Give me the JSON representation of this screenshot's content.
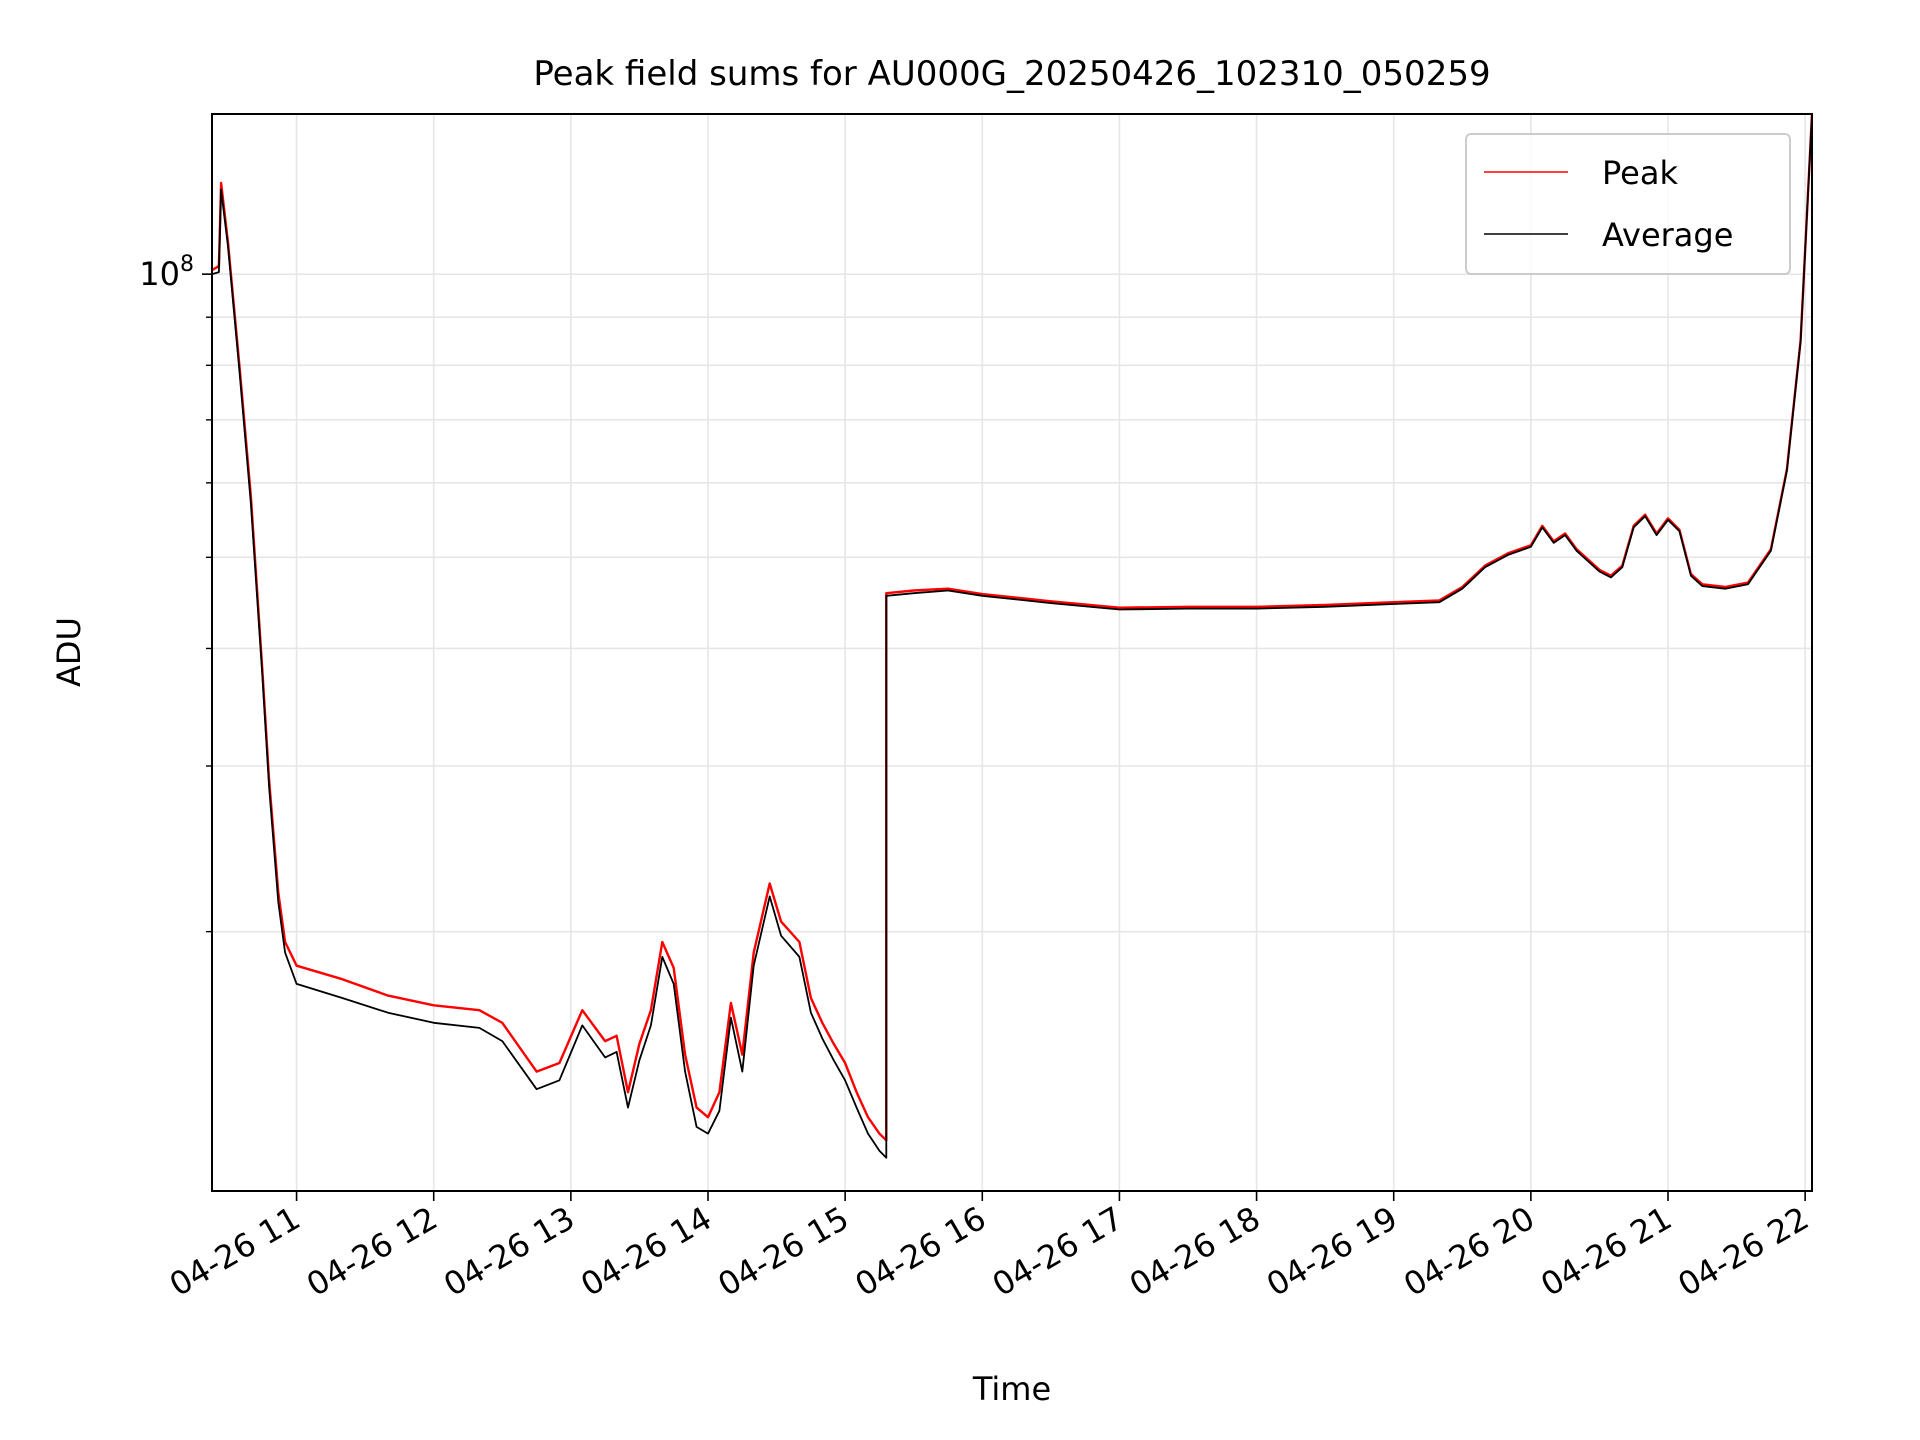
{
  "chart_data": {
    "type": "line",
    "title": "Peak field sums for AU000G_20250426_102310_050259",
    "xlabel": "Time",
    "ylabel": "ADU",
    "y_scale": "log",
    "grid": true,
    "legend_position": "top-right",
    "x_range": [
      "04-26 10:23",
      "04-26 22:03"
    ],
    "y_range": [
      10600000,
      148000000
    ],
    "x_ticks": [
      "04-26 11",
      "04-26 12",
      "04-26 13",
      "04-26 14",
      "04-26 15",
      "04-26 16",
      "04-26 17",
      "04-26 18",
      "04-26 19",
      "04-26 20",
      "04-26 21",
      "04-26 22"
    ],
    "y_tick_labels": [
      {
        "value": 100000000,
        "base": "10",
        "exponent": "8"
      }
    ],
    "y_minor_ticks": [
      20000000,
      30000000,
      40000000,
      50000000,
      60000000,
      70000000,
      80000000,
      90000000
    ],
    "series": [
      {
        "name": "Peak",
        "color": "#ff0000",
        "points": [
          [
            "04-26 10:23",
            101000000
          ],
          [
            "04-26 10:26",
            102000000
          ],
          [
            "04-26 10:27",
            125000000
          ],
          [
            "04-26 10:30",
            108000000
          ],
          [
            "04-26 10:35",
            80000000
          ],
          [
            "04-26 10:40",
            58000000
          ],
          [
            "04-26 10:45",
            38000000
          ],
          [
            "04-26 10:48",
            29000000
          ],
          [
            "04-26 10:52",
            22000000
          ],
          [
            "04-26 10:55",
            19500000
          ],
          [
            "04-26 11:00",
            18400000
          ],
          [
            "04-26 11:20",
            17800000
          ],
          [
            "04-26 11:40",
            17100000
          ],
          [
            "04-26 12:00",
            16700000
          ],
          [
            "04-26 12:20",
            16500000
          ],
          [
            "04-26 12:30",
            16000000
          ],
          [
            "04-26 12:45",
            14200000
          ],
          [
            "04-26 12:55",
            14500000
          ],
          [
            "04-26 13:05",
            16500000
          ],
          [
            "04-26 13:15",
            15300000
          ],
          [
            "04-26 13:20",
            15500000
          ],
          [
            "04-26 13:25",
            13500000
          ],
          [
            "04-26 13:30",
            15200000
          ],
          [
            "04-26 13:35",
            16500000
          ],
          [
            "04-26 13:40",
            19500000
          ],
          [
            "04-26 13:45",
            18300000
          ],
          [
            "04-26 13:50",
            14800000
          ],
          [
            "04-26 13:55",
            13000000
          ],
          [
            "04-26 14:00",
            12700000
          ],
          [
            "04-26 14:05",
            13500000
          ],
          [
            "04-26 14:10",
            16800000
          ],
          [
            "04-26 14:15",
            14800000
          ],
          [
            "04-26 14:20",
            19000000
          ],
          [
            "04-26 14:27",
            22500000
          ],
          [
            "04-26 14:32",
            20500000
          ],
          [
            "04-26 14:40",
            19500000
          ],
          [
            "04-26 14:45",
            17000000
          ],
          [
            "04-26 14:50",
            16000000
          ],
          [
            "04-26 14:55",
            15200000
          ],
          [
            "04-26 15:00",
            14500000
          ],
          [
            "04-26 15:05",
            13500000
          ],
          [
            "04-26 15:10",
            12700000
          ],
          [
            "04-26 15:15",
            12200000
          ],
          [
            "04-26 15:18",
            12000000
          ],
          [
            "04-26 15:18",
            45800000
          ],
          [
            "04-26 15:30",
            46100000
          ],
          [
            "04-26 15:45",
            46300000
          ],
          [
            "04-26 16:00",
            45700000
          ],
          [
            "04-26 16:30",
            44900000
          ],
          [
            "04-26 17:00",
            44200000
          ],
          [
            "04-26 17:30",
            44300000
          ],
          [
            "04-26 18:00",
            44300000
          ],
          [
            "04-26 18:30",
            44500000
          ],
          [
            "04-26 19:00",
            44800000
          ],
          [
            "04-26 19:20",
            45000000
          ],
          [
            "04-26 19:30",
            46500000
          ],
          [
            "04-26 19:40",
            49000000
          ],
          [
            "04-26 19:50",
            50500000
          ],
          [
            "04-26 20:00",
            51500000
          ],
          [
            "04-26 20:05",
            54000000
          ],
          [
            "04-26 20:10",
            52000000
          ],
          [
            "04-26 20:15",
            53000000
          ],
          [
            "04-26 20:20",
            51000000
          ],
          [
            "04-26 20:30",
            48500000
          ],
          [
            "04-26 20:35",
            47800000
          ],
          [
            "04-26 20:40",
            49000000
          ],
          [
            "04-26 20:45",
            54000000
          ],
          [
            "04-26 20:50",
            55500000
          ],
          [
            "04-26 20:55",
            53000000
          ],
          [
            "04-26 21:00",
            55000000
          ],
          [
            "04-26 21:05",
            53500000
          ],
          [
            "04-26 21:10",
            48000000
          ],
          [
            "04-26 21:15",
            46800000
          ],
          [
            "04-26 21:25",
            46500000
          ],
          [
            "04-26 21:35",
            47000000
          ],
          [
            "04-26 21:45",
            51000000
          ],
          [
            "04-26 21:52",
            62000000
          ],
          [
            "04-26 21:58",
            85000000
          ],
          [
            "04-26 22:03",
            148000000
          ]
        ]
      },
      {
        "name": "Average",
        "color": "#000000",
        "points": [
          [
            "04-26 10:23",
            100000000
          ],
          [
            "04-26 10:26",
            100500000
          ],
          [
            "04-26 10:27",
            123000000
          ],
          [
            "04-26 10:30",
            107000000
          ],
          [
            "04-26 10:35",
            79000000
          ],
          [
            "04-26 10:40",
            57000000
          ],
          [
            "04-26 10:45",
            37500000
          ],
          [
            "04-26 10:48",
            28500000
          ],
          [
            "04-26 10:52",
            21500000
          ],
          [
            "04-26 10:55",
            19000000
          ],
          [
            "04-26 11:00",
            17600000
          ],
          [
            "04-26 11:20",
            17000000
          ],
          [
            "04-26 11:40",
            16400000
          ],
          [
            "04-26 12:00",
            16000000
          ],
          [
            "04-26 12:20",
            15800000
          ],
          [
            "04-26 12:30",
            15300000
          ],
          [
            "04-26 12:45",
            13600000
          ],
          [
            "04-26 12:55",
            13900000
          ],
          [
            "04-26 13:05",
            15900000
          ],
          [
            "04-26 13:15",
            14700000
          ],
          [
            "04-26 13:20",
            14900000
          ],
          [
            "04-26 13:25",
            13000000
          ],
          [
            "04-26 13:30",
            14600000
          ],
          [
            "04-26 13:35",
            15900000
          ],
          [
            "04-26 13:40",
            18800000
          ],
          [
            "04-26 13:45",
            17600000
          ],
          [
            "04-26 13:50",
            14200000
          ],
          [
            "04-26 13:55",
            12400000
          ],
          [
            "04-26 14:00",
            12200000
          ],
          [
            "04-26 14:05",
            12900000
          ],
          [
            "04-26 14:10",
            16200000
          ],
          [
            "04-26 14:15",
            14200000
          ],
          [
            "04-26 14:20",
            18400000
          ],
          [
            "04-26 14:27",
            21800000
          ],
          [
            "04-26 14:32",
            19800000
          ],
          [
            "04-26 14:40",
            18800000
          ],
          [
            "04-26 14:45",
            16400000
          ],
          [
            "04-26 14:50",
            15400000
          ],
          [
            "04-26 14:55",
            14600000
          ],
          [
            "04-26 15:00",
            13900000
          ],
          [
            "04-26 15:05",
            13000000
          ],
          [
            "04-26 15:10",
            12200000
          ],
          [
            "04-26 15:15",
            11700000
          ],
          [
            "04-26 15:18",
            11500000
          ],
          [
            "04-26 15:18",
            45500000
          ],
          [
            "04-26 15:30",
            45800000
          ],
          [
            "04-26 15:45",
            46100000
          ],
          [
            "04-26 16:00",
            45500000
          ],
          [
            "04-26 16:30",
            44700000
          ],
          [
            "04-26 17:00",
            44000000
          ],
          [
            "04-26 17:30",
            44100000
          ],
          [
            "04-26 18:00",
            44100000
          ],
          [
            "04-26 18:30",
            44300000
          ],
          [
            "04-26 19:00",
            44600000
          ],
          [
            "04-26 19:20",
            44800000
          ],
          [
            "04-26 19:30",
            46300000
          ],
          [
            "04-26 19:40",
            48800000
          ],
          [
            "04-26 19:50",
            50300000
          ],
          [
            "04-26 20:00",
            51300000
          ],
          [
            "04-26 20:05",
            53800000
          ],
          [
            "04-26 20:10",
            51800000
          ],
          [
            "04-26 20:15",
            52800000
          ],
          [
            "04-26 20:20",
            50800000
          ],
          [
            "04-26 20:30",
            48300000
          ],
          [
            "04-26 20:35",
            47600000
          ],
          [
            "04-26 20:40",
            48800000
          ],
          [
            "04-26 20:45",
            53800000
          ],
          [
            "04-26 20:50",
            55300000
          ],
          [
            "04-26 20:55",
            52800000
          ],
          [
            "04-26 21:00",
            54800000
          ],
          [
            "04-26 21:05",
            53300000
          ],
          [
            "04-26 21:10",
            47800000
          ],
          [
            "04-26 21:15",
            46600000
          ],
          [
            "04-26 21:25",
            46300000
          ],
          [
            "04-26 21:35",
            46800000
          ],
          [
            "04-26 21:45",
            50800000
          ],
          [
            "04-26 21:52",
            61800000
          ],
          [
            "04-26 21:58",
            84800000
          ],
          [
            "04-26 22:03",
            148000000
          ]
        ]
      }
    ]
  }
}
